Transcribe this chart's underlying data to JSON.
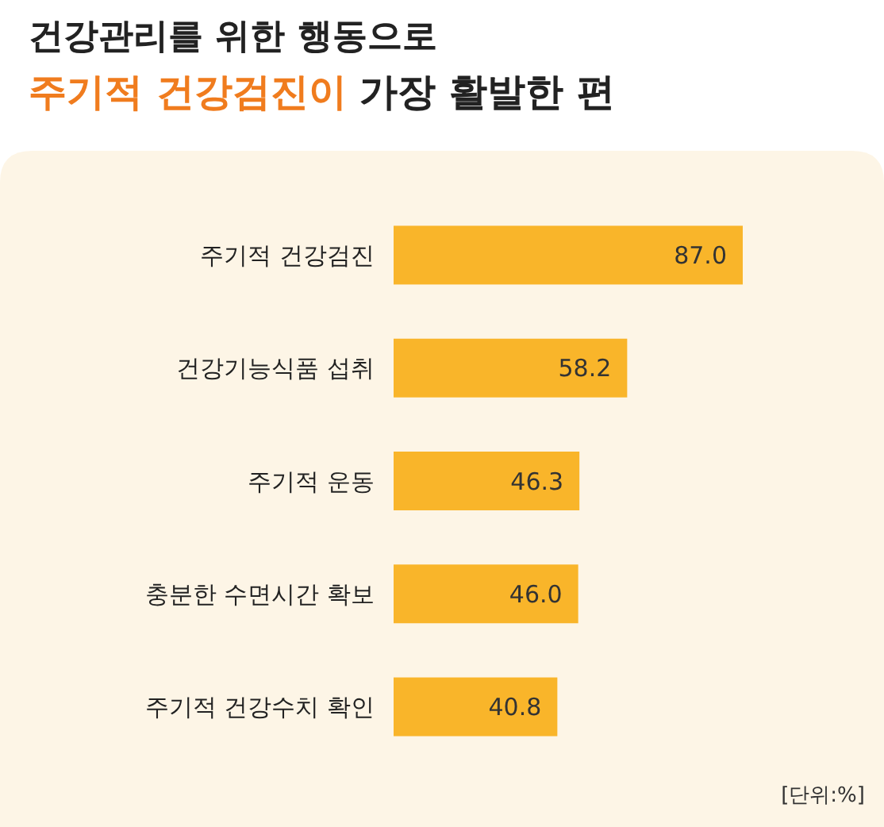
{
  "chart_data": {
    "type": "bar",
    "orientation": "horizontal",
    "title": "건강관리를 위한 행동으로\n주기적 건강검진이 가장 활발한 편",
    "categories": [
      "주기적 건강검진",
      "건강기능식품 섭취",
      "주기적 운동",
      "충분한 수면시간 확보",
      "주기적 건강수치 확인"
    ],
    "values": [
      87.0,
      58.2,
      46.3,
      46.0,
      40.8
    ],
    "value_labels": [
      "87.0",
      "58.2",
      "46.3",
      "46.0",
      "40.8"
    ],
    "color": "#f9b52a",
    "annotations": [
      "[단위:%]"
    ]
  }
}
